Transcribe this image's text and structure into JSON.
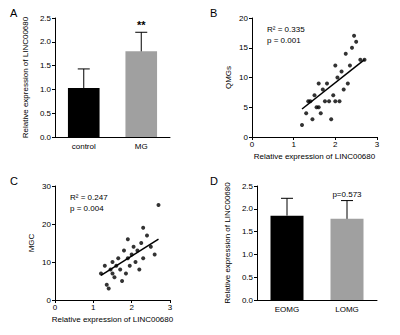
{
  "chart_data": [
    {
      "type": "bar",
      "label": "A",
      "categories": [
        "control",
        "MG"
      ],
      "values": [
        1.03,
        1.8
      ],
      "errors": [
        0.4,
        0.4
      ],
      "colors": [
        "#000000",
        "#a0a0a0"
      ],
      "ylabel": "Relative expression of LINC00680",
      "ylim": [
        0,
        2.5
      ],
      "yticks": [
        {
          "value": 0,
          "label": "0.0"
        },
        0.5,
        {
          "value": 1,
          "label": "1.0"
        },
        1.5,
        {
          "value": 2,
          "label": "2.0"
        },
        2.5
      ],
      "annotations": [
        {
          "category": "MG",
          "text": "**"
        }
      ],
      "grid": false
    },
    {
      "type": "scatter",
      "label": "B",
      "x": [
        1.2,
        1.3,
        1.35,
        1.4,
        1.45,
        1.5,
        1.55,
        1.6,
        1.65,
        1.7,
        1.75,
        1.8,
        1.85,
        1.9,
        1.95,
        2.0,
        2.05,
        2.1,
        2.15,
        2.2,
        2.25,
        2.3,
        2.35,
        2.4,
        2.45,
        2.5,
        2.6,
        2.7,
        2.0,
        1.6
      ],
      "values": [
        2,
        4,
        6,
        6,
        3,
        7,
        5,
        5,
        4,
        8,
        6,
        9,
        6,
        3,
        7,
        6,
        10,
        6,
        11,
        8,
        14,
        9,
        12,
        15,
        17,
        16,
        13,
        13,
        12,
        9
      ],
      "color": "#000000",
      "xlabel": "Relative expression of LINC00680",
      "ylabel": "QMGs",
      "xlim": [
        0,
        3
      ],
      "xticks": [
        0,
        1,
        2,
        3
      ],
      "ylim": [
        0,
        20
      ],
      "yticks": [
        0,
        5,
        10,
        15,
        20
      ],
      "trendline": {
        "x": [
          1.2,
          2.7
        ],
        "y": [
          4.7,
          13
        ]
      },
      "annotations": [
        "R² = 0.335",
        "p = 0.001"
      ],
      "grid": false
    },
    {
      "type": "scatter",
      "label": "C",
      "x": [
        1.2,
        1.3,
        1.35,
        1.4,
        1.45,
        1.5,
        1.55,
        1.6,
        1.65,
        1.7,
        1.75,
        1.8,
        1.85,
        1.9,
        1.95,
        2.0,
        2.05,
        2.1,
        2.15,
        2.2,
        2.25,
        2.3,
        2.4,
        2.5,
        2.6,
        2.7,
        1.5,
        1.9,
        2.3
      ],
      "values": [
        7,
        9,
        4,
        3,
        8,
        7,
        6,
        9,
        11,
        8,
        5,
        13,
        7,
        11,
        9,
        12,
        14,
        10,
        13,
        8,
        15,
        11,
        17,
        14,
        12,
        25,
        10,
        16,
        19
      ],
      "color": "#000000",
      "xlabel": "Relative expression of LINC00680",
      "ylabel": "MGC",
      "xlim": [
        0,
        3
      ],
      "xticks": [
        0,
        1,
        2,
        3
      ],
      "ylim": [
        0,
        30
      ],
      "yticks": [
        0,
        10,
        20,
        30
      ],
      "trendline": {
        "x": [
          1.2,
          2.7
        ],
        "y": [
          6.5,
          16
        ]
      },
      "annotations": [
        "R² = 0.247",
        "p = 0.004"
      ],
      "grid": false
    },
    {
      "type": "bar",
      "label": "D",
      "categories": [
        "EOMG",
        "LOMG"
      ],
      "values": [
        1.85,
        1.78
      ],
      "errors": [
        0.38,
        0.4
      ],
      "colors": [
        "#000000",
        "#a0a0a0"
      ],
      "ylabel": "Relative expression of LINC00680",
      "ylim": [
        0,
        2.5
      ],
      "yticks": [
        {
          "value": 0,
          "label": "0.0"
        },
        0.5,
        {
          "value": 1,
          "label": "1.0"
        },
        1.5,
        {
          "value": 2,
          "label": "2.0"
        },
        2.5
      ],
      "annotations": [
        {
          "category": "LOMG",
          "text": "p=0.573"
        }
      ],
      "grid": false
    }
  ]
}
